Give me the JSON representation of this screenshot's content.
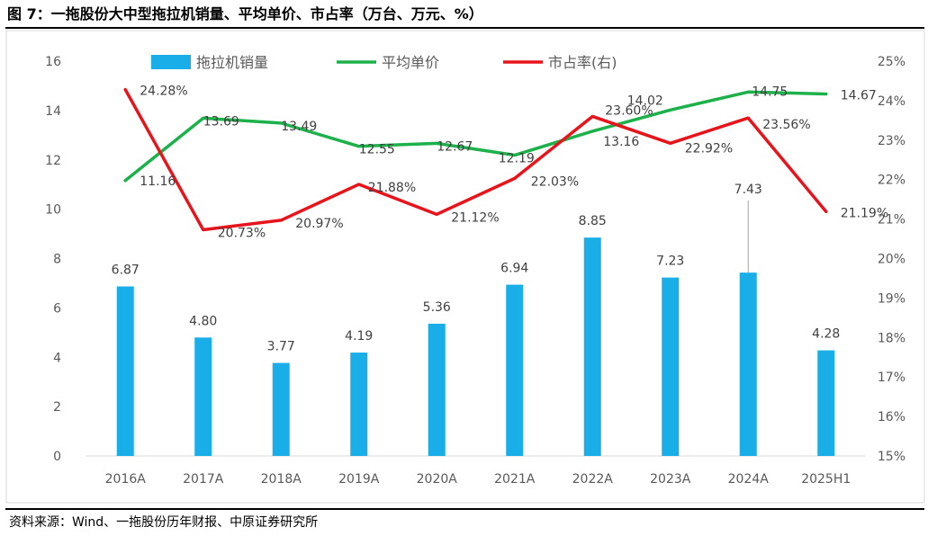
{
  "title": "图 7：一拖股份大中型拖拉机销量、平均单价、市占率（万台、万元、%）",
  "source": "资料来源：Wind、一拖股份历年财报、中原证券研究所",
  "colors": {
    "bar": "#1aaee8",
    "avg_price": "#1db14b",
    "market_share": "#e8141b"
  },
  "chart_data": {
    "type": "bar",
    "categories": [
      "2016A",
      "2017A",
      "2018A",
      "2019A",
      "2020A",
      "2021A",
      "2022A",
      "2023A",
      "2024A",
      "2025H1"
    ],
    "series": [
      {
        "name": "拖拉机销量",
        "type": "bar",
        "axis": "left",
        "values": [
          6.87,
          4.8,
          3.77,
          4.19,
          5.36,
          6.94,
          8.85,
          7.23,
          7.43,
          4.28
        ],
        "labels": [
          "6.87",
          "4.80",
          "3.77",
          "4.19",
          "5.36",
          "6.94",
          "8.85",
          "7.23",
          "7.43",
          "4.28"
        ]
      },
      {
        "name": "平均单价",
        "type": "line",
        "axis": "left",
        "values": [
          11.16,
          13.69,
          13.49,
          12.55,
          12.67,
          12.19,
          13.16,
          14.02,
          14.75,
          14.67
        ],
        "labels": [
          "11.16",
          "13.69",
          "13.49",
          "12.55",
          "12.67",
          "12.19",
          "13.16",
          "14.02",
          "14.75",
          "14.67"
        ]
      },
      {
        "name": "市占率(右)",
        "type": "line",
        "axis": "right",
        "values": [
          24.28,
          20.73,
          20.97,
          21.88,
          21.12,
          22.03,
          23.6,
          22.92,
          23.56,
          21.19
        ],
        "labels": [
          "24.28%",
          "20.73%",
          "20.97%",
          "21.88%",
          "21.12%",
          "22.03%",
          "23.60%",
          "22.92%",
          "23.56%",
          "21.19%"
        ]
      }
    ],
    "left_axis": {
      "min": 0,
      "max": 16,
      "ticks": [
        "0",
        "2",
        "4",
        "6",
        "8",
        "10",
        "12",
        "14",
        "16"
      ]
    },
    "right_axis": {
      "min": 15,
      "max": 25,
      "ticks": [
        "15%",
        "16%",
        "17%",
        "18%",
        "19%",
        "20%",
        "21%",
        "22%",
        "23%",
        "24%",
        "25%"
      ]
    },
    "grid": false,
    "legend": "top"
  }
}
